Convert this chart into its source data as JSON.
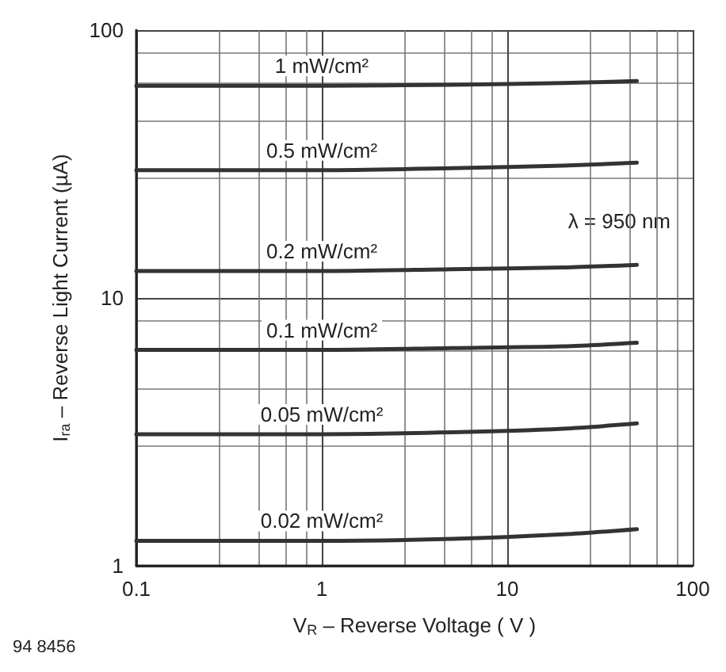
{
  "chart_data": {
    "type": "line",
    "xlabel": "V$_{R}$ – Reverse Voltage ( V )",
    "ylabel": "I$_{ra}$ – Reverse Light Current (µA)",
    "annotations": [
      "λ = 950 nm",
      "94 8456"
    ],
    "x": [
      0.1,
      1,
      5,
      20,
      50
    ],
    "series": [
      {
        "name": "1 mW/cm²",
        "color": "#333333",
        "values": [
          62,
          62,
          62.5,
          63.5,
          64.5
        ]
      },
      {
        "name": "0.5 mW/cm²",
        "color": "#333333",
        "values": [
          30,
          30,
          30.5,
          31.2,
          32
        ]
      },
      {
        "name": "0.2 mW/cm²",
        "color": "#333333",
        "values": [
          12.6,
          12.6,
          12.8,
          13,
          13.3
        ]
      },
      {
        "name": "0.1 mW/cm²",
        "color": "#333333",
        "values": [
          6.4,
          6.4,
          6.5,
          6.6,
          6.8
        ]
      },
      {
        "name": "0.05 mW/cm²",
        "color": "#333333",
        "values": [
          3.1,
          3.1,
          3.15,
          3.25,
          3.4
        ]
      },
      {
        "name": "0.02 mW/cm²",
        "color": "#333333",
        "values": [
          1.24,
          1.24,
          1.26,
          1.31,
          1.37
        ]
      }
    ],
    "xlim": [
      0.1,
      100
    ],
    "xticks": [
      0.1,
      1,
      10,
      100
    ],
    "ylim": [
      1,
      100
    ],
    "yticks": [
      1,
      10,
      100
    ],
    "log": "xy",
    "grid": true,
    "legend": false,
    "marker": "none",
    "line_style": "solid"
  }
}
